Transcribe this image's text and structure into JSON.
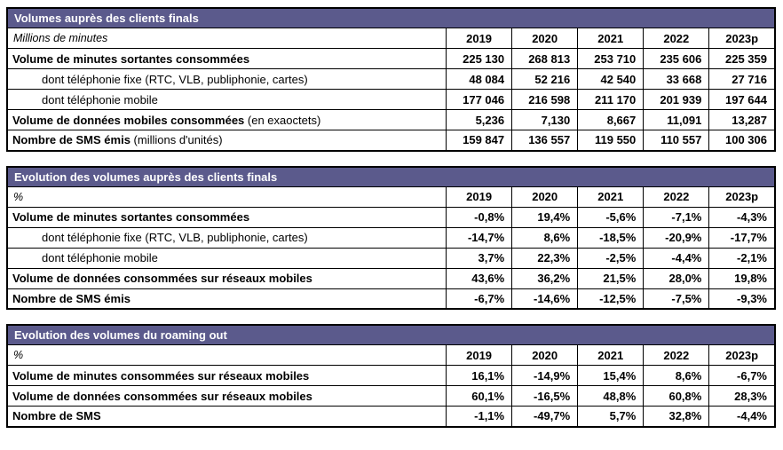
{
  "colors": {
    "header_bg": "#5b5a8c",
    "header_text": "#ffffff",
    "border": "#000000"
  },
  "tables": [
    {
      "title": "Volumes auprès des clients finals",
      "unit": "Millions de minutes",
      "years": [
        "2019",
        "2020",
        "2021",
        "2022",
        "2023p"
      ],
      "rows": [
        {
          "label": "Volume de minutes sortantes consommées",
          "values": [
            "225 130",
            "268 813",
            "253 710",
            "235 606",
            "225 359"
          ]
        },
        {
          "label": "dont téléphonie fixe (RTC, VLB, publiphonie, cartes)",
          "values": [
            "48 084",
            "52 216",
            "42 540",
            "33 668",
            "27 716"
          ]
        },
        {
          "label": "dont téléphonie mobile",
          "values": [
            "177 046",
            "216 598",
            "211 170",
            "201 939",
            "197 644"
          ]
        },
        {
          "label": "Volume de données mobiles consommées",
          "label_suffix": " (en exaoctets)",
          "values": [
            "5,236",
            "7,130",
            "8,667",
            "11,091",
            "13,287"
          ]
        },
        {
          "label": "Nombre de SMS émis",
          "label_suffix": " (millions d'unités)",
          "values": [
            "159 847",
            "136 557",
            "119 550",
            "110 557",
            "100 306"
          ]
        }
      ]
    },
    {
      "title": "Evolution des volumes auprès des clients finals",
      "unit": "%",
      "years": [
        "2019",
        "2020",
        "2021",
        "2022",
        "2023p"
      ],
      "rows": [
        {
          "label": "Volume de minutes sortantes consommées",
          "values": [
            "-0,8%",
            "19,4%",
            "-5,6%",
            "-7,1%",
            "-4,3%"
          ]
        },
        {
          "label": "dont téléphonie fixe (RTC, VLB, publiphonie, cartes)",
          "values": [
            "-14,7%",
            "8,6%",
            "-18,5%",
            "-20,9%",
            "-17,7%"
          ]
        },
        {
          "label": "dont téléphonie mobile",
          "values": [
            "3,7%",
            "22,3%",
            "-2,5%",
            "-4,4%",
            "-2,1%"
          ]
        },
        {
          "label": "Volume de données consommées sur réseaux mobiles",
          "values": [
            "43,6%",
            "36,2%",
            "21,5%",
            "28,0%",
            "19,8%"
          ]
        },
        {
          "label": "Nombre de SMS émis",
          "values": [
            "-6,7%",
            "-14,6%",
            "-12,5%",
            "-7,5%",
            "-9,3%"
          ]
        }
      ]
    },
    {
      "title": "Evolution des volumes du roaming out",
      "unit": "%",
      "years": [
        "2019",
        "2020",
        "2021",
        "2022",
        "2023p"
      ],
      "rows": [
        {
          "label": "Volume de minutes consommées sur réseaux mobiles",
          "values": [
            "16,1%",
            "-14,9%",
            "15,4%",
            "8,6%",
            "-6,7%"
          ]
        },
        {
          "label": "Volume de données consommées sur réseaux mobiles",
          "values": [
            "60,1%",
            "-16,5%",
            "48,8%",
            "60,8%",
            "28,3%"
          ]
        },
        {
          "label": "Nombre de SMS",
          "values": [
            "-1,1%",
            "-49,7%",
            "5,7%",
            "32,8%",
            "-4,4%"
          ]
        }
      ]
    }
  ]
}
